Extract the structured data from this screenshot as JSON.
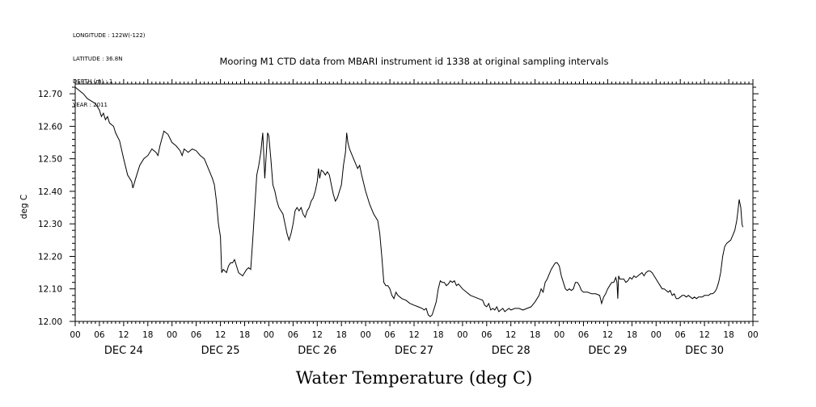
{
  "header": {
    "meta_lines": [
      "LONGITUDE : 122W(-122)",
      "LATITUDE : 36.8N",
      "DEPTH (m) : 1",
      "YEAR : 2011"
    ]
  },
  "chart_data": {
    "type": "line",
    "title": "Mooring M1 CTD data from MBARI instrument id 1338 at original sampling intervals",
    "ylabel": "deg C",
    "xlabel": "Water Temperature (deg C)",
    "ylim": [
      12.0,
      12.73
    ],
    "yticks": [
      12.0,
      12.1,
      12.2,
      12.3,
      12.4,
      12.5,
      12.6,
      12.7
    ],
    "x_unit": "hours since DEC 24 00:00",
    "xlim": [
      0,
      168
    ],
    "hour_tick_labels": [
      "00",
      "06",
      "12",
      "18"
    ],
    "day_labels": [
      "DEC 24",
      "DEC 25",
      "DEC 26",
      "DEC 27",
      "DEC 28",
      "DEC 29",
      "DEC 30"
    ],
    "grid": false,
    "series": [
      {
        "points": [
          [
            0,
            12.72
          ],
          [
            2,
            12.7
          ],
          [
            3,
            12.685
          ],
          [
            5,
            12.67
          ],
          [
            6,
            12.65
          ],
          [
            6.5,
            12.63
          ],
          [
            7,
            12.64
          ],
          [
            7.5,
            12.62
          ],
          [
            8,
            12.63
          ],
          [
            8.5,
            12.61
          ],
          [
            9.5,
            12.6
          ],
          [
            10,
            12.58
          ],
          [
            11,
            12.555
          ],
          [
            12,
            12.5
          ],
          [
            13,
            12.45
          ],
          [
            14,
            12.43
          ],
          [
            14.3,
            12.41
          ],
          [
            15,
            12.44
          ],
          [
            16,
            12.48
          ],
          [
            17,
            12.5
          ],
          [
            18,
            12.51
          ],
          [
            19,
            12.53
          ],
          [
            20,
            12.52
          ],
          [
            20.5,
            12.51
          ],
          [
            21,
            12.54
          ],
          [
            22,
            12.585
          ],
          [
            23,
            12.575
          ],
          [
            24,
            12.55
          ],
          [
            25,
            12.54
          ],
          [
            26,
            12.525
          ],
          [
            26.5,
            12.51
          ],
          [
            27,
            12.53
          ],
          [
            28,
            12.52
          ],
          [
            29,
            12.53
          ],
          [
            30,
            12.525
          ],
          [
            31,
            12.51
          ],
          [
            32,
            12.5
          ],
          [
            33,
            12.47
          ],
          [
            34,
            12.44
          ],
          [
            34.5,
            12.42
          ],
          [
            35,
            12.37
          ],
          [
            35.5,
            12.3
          ],
          [
            36,
            12.26
          ],
          [
            36.3,
            12.15
          ],
          [
            36.7,
            12.16
          ],
          [
            37.5,
            12.15
          ],
          [
            38,
            12.17
          ],
          [
            38.5,
            12.18
          ],
          [
            39,
            12.18
          ],
          [
            39.5,
            12.19
          ],
          [
            40,
            12.17
          ],
          [
            40.5,
            12.15
          ],
          [
            41.5,
            12.14
          ],
          [
            42,
            12.15
          ],
          [
            42.5,
            12.16
          ],
          [
            43,
            12.165
          ],
          [
            43.5,
            12.16
          ],
          [
            44,
            12.25
          ],
          [
            45,
            12.45
          ],
          [
            45.5,
            12.48
          ],
          [
            46,
            12.52
          ],
          [
            46.5,
            12.58
          ],
          [
            46.8,
            12.5
          ],
          [
            47,
            12.44
          ],
          [
            47.3,
            12.5
          ],
          [
            47.7,
            12.58
          ],
          [
            48,
            12.57
          ],
          [
            48.5,
            12.5
          ],
          [
            49,
            12.42
          ],
          [
            49.5,
            12.4
          ],
          [
            50,
            12.37
          ],
          [
            50.5,
            12.35
          ],
          [
            51,
            12.34
          ],
          [
            51.5,
            12.33
          ],
          [
            52,
            12.3
          ],
          [
            52.5,
            12.27
          ],
          [
            53,
            12.25
          ],
          [
            53.5,
            12.27
          ],
          [
            54,
            12.3
          ],
          [
            54.5,
            12.34
          ],
          [
            55,
            12.35
          ],
          [
            55.5,
            12.34
          ],
          [
            56,
            12.35
          ],
          [
            56.5,
            12.33
          ],
          [
            57,
            12.32
          ],
          [
            57.5,
            12.34
          ],
          [
            58,
            12.35
          ],
          [
            58.5,
            12.37
          ],
          [
            59,
            12.38
          ],
          [
            59.5,
            12.4
          ],
          [
            60,
            12.43
          ],
          [
            60.3,
            12.47
          ],
          [
            60.6,
            12.44
          ],
          [
            61,
            12.465
          ],
          [
            61.5,
            12.46
          ],
          [
            62,
            12.45
          ],
          [
            62.5,
            12.46
          ],
          [
            63,
            12.45
          ],
          [
            63.5,
            12.42
          ],
          [
            64,
            12.39
          ],
          [
            64.5,
            12.37
          ],
          [
            65,
            12.38
          ],
          [
            65.5,
            12.4
          ],
          [
            66,
            12.42
          ],
          [
            66.5,
            12.48
          ],
          [
            67,
            12.52
          ],
          [
            67.3,
            12.58
          ],
          [
            67.6,
            12.55
          ],
          [
            68,
            12.53
          ],
          [
            69,
            12.5
          ],
          [
            70,
            12.47
          ],
          [
            70.5,
            12.48
          ],
          [
            71,
            12.45
          ],
          [
            72,
            12.4
          ],
          [
            73,
            12.36
          ],
          [
            74,
            12.33
          ],
          [
            75,
            12.31
          ],
          [
            75.5,
            12.27
          ],
          [
            76,
            12.2
          ],
          [
            76.5,
            12.12
          ],
          [
            77,
            12.11
          ],
          [
            77.5,
            12.11
          ],
          [
            78,
            12.1
          ],
          [
            78.5,
            12.08
          ],
          [
            79,
            12.07
          ],
          [
            79.5,
            12.09
          ],
          [
            80,
            12.08
          ],
          [
            81,
            12.07
          ],
          [
            82,
            12.065
          ],
          [
            83,
            12.055
          ],
          [
            84,
            12.05
          ],
          [
            85,
            12.045
          ],
          [
            86,
            12.04
          ],
          [
            86.5,
            12.035
          ],
          [
            87,
            12.04
          ],
          [
            87.5,
            12.02
          ],
          [
            88,
            12.015
          ],
          [
            88.5,
            12.02
          ],
          [
            89,
            12.04
          ],
          [
            89.5,
            12.06
          ],
          [
            90,
            12.1
          ],
          [
            90.5,
            12.125
          ],
          [
            91,
            12.12
          ],
          [
            91.5,
            12.12
          ],
          [
            92,
            12.11
          ],
          [
            92.5,
            12.115
          ],
          [
            93,
            12.125
          ],
          [
            93.5,
            12.12
          ],
          [
            94,
            12.125
          ],
          [
            94.5,
            12.11
          ],
          [
            95,
            12.115
          ],
          [
            96,
            12.1
          ],
          [
            97,
            12.09
          ],
          [
            98,
            12.08
          ],
          [
            99,
            12.075
          ],
          [
            100,
            12.07
          ],
          [
            101,
            12.065
          ],
          [
            101.5,
            12.05
          ],
          [
            102,
            12.045
          ],
          [
            102.5,
            12.055
          ],
          [
            103,
            12.035
          ],
          [
            103.5,
            12.04
          ],
          [
            104,
            12.035
          ],
          [
            104.5,
            12.045
          ],
          [
            105,
            12.03
          ],
          [
            105.5,
            12.035
          ],
          [
            106,
            12.04
          ],
          [
            106.5,
            12.03
          ],
          [
            107,
            12.035
          ],
          [
            107.5,
            12.04
          ],
          [
            108,
            12.035
          ],
          [
            109,
            12.04
          ],
          [
            110,
            12.04
          ],
          [
            111,
            12.035
          ],
          [
            112,
            12.04
          ],
          [
            113,
            12.045
          ],
          [
            114,
            12.06
          ],
          [
            115,
            12.08
          ],
          [
            115.5,
            12.1
          ],
          [
            116,
            12.09
          ],
          [
            116.5,
            12.12
          ],
          [
            117,
            12.13
          ],
          [
            117.5,
            12.145
          ],
          [
            118,
            12.16
          ],
          [
            118.5,
            12.17
          ],
          [
            119,
            12.18
          ],
          [
            119.5,
            12.18
          ],
          [
            120,
            12.17
          ],
          [
            120.5,
            12.14
          ],
          [
            121,
            12.12
          ],
          [
            121.5,
            12.1
          ],
          [
            122,
            12.095
          ],
          [
            122.5,
            12.1
          ],
          [
            123,
            12.095
          ],
          [
            123.5,
            12.1
          ],
          [
            124,
            12.12
          ],
          [
            124.5,
            12.12
          ],
          [
            125,
            12.11
          ],
          [
            125.5,
            12.095
          ],
          [
            126,
            12.09
          ],
          [
            127,
            12.09
          ],
          [
            128,
            12.085
          ],
          [
            129,
            12.085
          ],
          [
            130,
            12.08
          ],
          [
            130.5,
            12.055
          ],
          [
            131,
            12.075
          ],
          [
            131.5,
            12.085
          ],
          [
            132,
            12.1
          ],
          [
            132.5,
            12.11
          ],
          [
            133,
            12.12
          ],
          [
            133.5,
            12.12
          ],
          [
            134,
            12.135
          ],
          [
            134.3,
            12.12
          ],
          [
            134.5,
            12.07
          ],
          [
            134.7,
            12.14
          ],
          [
            135,
            12.13
          ],
          [
            135.5,
            12.13
          ],
          [
            136,
            12.13
          ],
          [
            136.5,
            12.12
          ],
          [
            137,
            12.125
          ],
          [
            137.5,
            12.135
          ],
          [
            138,
            12.13
          ],
          [
            138.5,
            12.14
          ],
          [
            139,
            12.135
          ],
          [
            139.5,
            12.14
          ],
          [
            140,
            12.145
          ],
          [
            140.5,
            12.15
          ],
          [
            141,
            12.14
          ],
          [
            141.5,
            12.15
          ],
          [
            142,
            12.155
          ],
          [
            142.5,
            12.155
          ],
          [
            143,
            12.15
          ],
          [
            143.5,
            12.14
          ],
          [
            144,
            12.13
          ],
          [
            144.5,
            12.12
          ],
          [
            145,
            12.11
          ],
          [
            145.5,
            12.1
          ],
          [
            146,
            12.1
          ],
          [
            146.5,
            12.095
          ],
          [
            147,
            12.09
          ],
          [
            147.5,
            12.095
          ],
          [
            148,
            12.08
          ],
          [
            148.5,
            12.085
          ],
          [
            149,
            12.07
          ],
          [
            149.5,
            12.07
          ],
          [
            150,
            12.075
          ],
          [
            150.5,
            12.08
          ],
          [
            151,
            12.08
          ],
          [
            151.5,
            12.075
          ],
          [
            152,
            12.08
          ],
          [
            152.5,
            12.075
          ],
          [
            153,
            12.07
          ],
          [
            153.5,
            12.075
          ],
          [
            154,
            12.07
          ],
          [
            154.5,
            12.075
          ],
          [
            155,
            12.075
          ],
          [
            155.5,
            12.075
          ],
          [
            156,
            12.08
          ],
          [
            156.5,
            12.08
          ],
          [
            157,
            12.08
          ],
          [
            157.5,
            12.085
          ],
          [
            158,
            12.085
          ],
          [
            158.5,
            12.09
          ],
          [
            159,
            12.1
          ],
          [
            159.5,
            12.12
          ],
          [
            160,
            12.15
          ],
          [
            160.5,
            12.2
          ],
          [
            161,
            12.23
          ],
          [
            161.5,
            12.24
          ],
          [
            162,
            12.245
          ],
          [
            162.5,
            12.25
          ],
          [
            163,
            12.265
          ],
          [
            163.5,
            12.28
          ],
          [
            164,
            12.31
          ],
          [
            164.3,
            12.34
          ],
          [
            164.6,
            12.375
          ],
          [
            165,
            12.35
          ],
          [
            165.3,
            12.3
          ],
          [
            165.5,
            12.29
          ]
        ]
      }
    ]
  }
}
